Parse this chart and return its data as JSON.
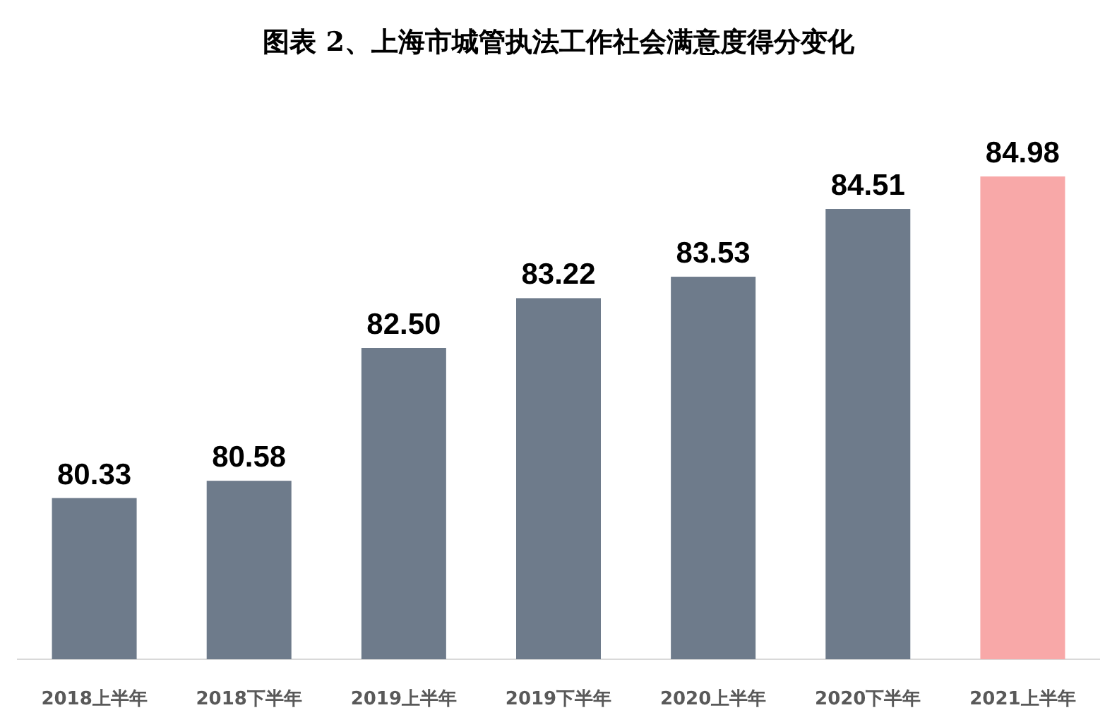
{
  "chart_data": {
    "type": "bar",
    "title": "图表 2、上海市城管执法工作社会满意度得分变化",
    "categories": [
      "2018上半年",
      "2018下半年",
      "2019上半年",
      "2019下半年",
      "2020上半年",
      "2020下半年",
      "2021上半年"
    ],
    "values": [
      80.33,
      80.58,
      82.5,
      83.22,
      83.53,
      84.51,
      84.98
    ],
    "value_labels": [
      "80.33",
      "80.58",
      "82.50",
      "83.22",
      "83.53",
      "84.51",
      "84.98"
    ],
    "colors": [
      "#6e7b8b",
      "#6e7b8b",
      "#6e7b8b",
      "#6e7b8b",
      "#6e7b8b",
      "#6e7b8b",
      "#f8a8a8"
    ],
    "ylim": [
      78,
      85
    ],
    "tick_labels": "x"
  }
}
